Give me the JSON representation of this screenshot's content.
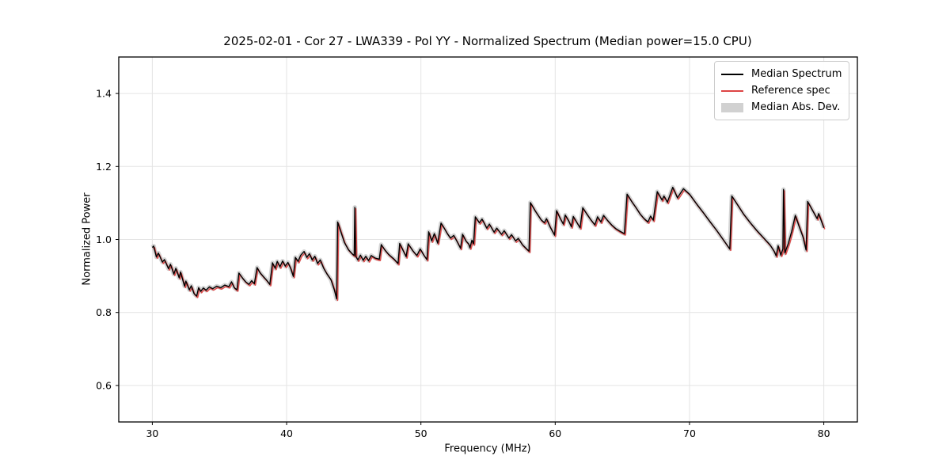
{
  "chart_data": {
    "type": "line",
    "title": "2025-02-01 - Cor 27 - LWA339 - Pol YY - Normalized Spectrum (Median power=15.0 CPU)",
    "xlabel": "Frequency (MHz)",
    "ylabel": "Normalized Power",
    "xlim": [
      27.5,
      82.5
    ],
    "ylim": [
      0.5,
      1.5
    ],
    "xticks": [
      30,
      40,
      50,
      60,
      70,
      80
    ],
    "yticks": [
      0.6,
      0.8,
      1.0,
      1.2,
      1.4
    ],
    "grid": true,
    "grid_color": "#e4e4e4",
    "background": "#ffffff",
    "legend_position": "upper right",
    "series": [
      {
        "name": "Median Spectrum",
        "type": "line",
        "color": "#000000",
        "points": [
          [
            30.0,
            0.978
          ],
          [
            30.1,
            0.982
          ],
          [
            30.3,
            0.952
          ],
          [
            30.45,
            0.963
          ],
          [
            30.75,
            0.938
          ],
          [
            30.9,
            0.945
          ],
          [
            31.2,
            0.92
          ],
          [
            31.35,
            0.932
          ],
          [
            31.6,
            0.905
          ],
          [
            31.75,
            0.921
          ],
          [
            32.0,
            0.895
          ],
          [
            32.1,
            0.911
          ],
          [
            32.4,
            0.872
          ],
          [
            32.5,
            0.886
          ],
          [
            32.75,
            0.862
          ],
          [
            32.9,
            0.873
          ],
          [
            33.1,
            0.852
          ],
          [
            33.3,
            0.845
          ],
          [
            33.45,
            0.868
          ],
          [
            33.6,
            0.858
          ],
          [
            33.8,
            0.867
          ],
          [
            34.0,
            0.861
          ],
          [
            34.25,
            0.87
          ],
          [
            34.5,
            0.865
          ],
          [
            34.8,
            0.872
          ],
          [
            35.1,
            0.868
          ],
          [
            35.4,
            0.875
          ],
          [
            35.7,
            0.871
          ],
          [
            35.9,
            0.884
          ],
          [
            36.1,
            0.868
          ],
          [
            36.3,
            0.862
          ],
          [
            36.45,
            0.908
          ],
          [
            36.7,
            0.895
          ],
          [
            36.95,
            0.884
          ],
          [
            37.2,
            0.877
          ],
          [
            37.4,
            0.887
          ],
          [
            37.6,
            0.879
          ],
          [
            37.8,
            0.923
          ],
          [
            38.0,
            0.91
          ],
          [
            38.25,
            0.899
          ],
          [
            38.5,
            0.889
          ],
          [
            38.75,
            0.877
          ],
          [
            38.95,
            0.936
          ],
          [
            39.15,
            0.921
          ],
          [
            39.3,
            0.94
          ],
          [
            39.5,
            0.925
          ],
          [
            39.7,
            0.941
          ],
          [
            39.9,
            0.927
          ],
          [
            40.1,
            0.937
          ],
          [
            40.3,
            0.921
          ],
          [
            40.5,
            0.899
          ],
          [
            40.65,
            0.951
          ],
          [
            40.85,
            0.94
          ],
          [
            41.05,
            0.957
          ],
          [
            41.3,
            0.967
          ],
          [
            41.5,
            0.951
          ],
          [
            41.7,
            0.961
          ],
          [
            41.9,
            0.944
          ],
          [
            42.1,
            0.954
          ],
          [
            42.3,
            0.934
          ],
          [
            42.5,
            0.944
          ],
          [
            42.75,
            0.922
          ],
          [
            43.0,
            0.906
          ],
          [
            43.3,
            0.89
          ],
          [
            43.55,
            0.862
          ],
          [
            43.72,
            0.837
          ],
          [
            43.8,
            1.048
          ],
          [
            44.05,
            1.02
          ],
          [
            44.3,
            0.992
          ],
          [
            44.6,
            0.972
          ],
          [
            44.9,
            0.96
          ],
          [
            45.03,
            0.956
          ],
          [
            45.08,
            1.088
          ],
          [
            45.15,
            0.954
          ],
          [
            45.3,
            0.944
          ],
          [
            45.5,
            0.957
          ],
          [
            45.7,
            0.943
          ],
          [
            45.9,
            0.954
          ],
          [
            46.1,
            0.942
          ],
          [
            46.3,
            0.956
          ],
          [
            46.6,
            0.949
          ],
          [
            46.9,
            0.946
          ],
          [
            47.05,
            0.986
          ],
          [
            47.3,
            0.972
          ],
          [
            47.6,
            0.959
          ],
          [
            48.0,
            0.946
          ],
          [
            48.3,
            0.934
          ],
          [
            48.42,
            0.989
          ],
          [
            48.7,
            0.968
          ],
          [
            48.9,
            0.953
          ],
          [
            49.05,
            0.988
          ],
          [
            49.4,
            0.969
          ],
          [
            49.7,
            0.956
          ],
          [
            49.95,
            0.974
          ],
          [
            50.2,
            0.958
          ],
          [
            50.45,
            0.945
          ],
          [
            50.58,
            1.021
          ],
          [
            50.8,
            0.996
          ],
          [
            51.0,
            1.016
          ],
          [
            51.25,
            0.99
          ],
          [
            51.5,
            1.045
          ],
          [
            51.75,
            1.03
          ],
          [
            51.95,
            1.017
          ],
          [
            52.2,
            1.004
          ],
          [
            52.45,
            1.011
          ],
          [
            52.7,
            0.994
          ],
          [
            52.95,
            0.976
          ],
          [
            53.1,
            1.014
          ],
          [
            53.35,
            0.996
          ],
          [
            53.55,
            0.988
          ],
          [
            53.65,
            0.977
          ],
          [
            53.8,
            0.998
          ],
          [
            53.92,
            0.988
          ],
          [
            54.05,
            1.062
          ],
          [
            54.35,
            1.046
          ],
          [
            54.55,
            1.056
          ],
          [
            54.9,
            1.031
          ],
          [
            55.1,
            1.042
          ],
          [
            55.45,
            1.02
          ],
          [
            55.65,
            1.031
          ],
          [
            56.0,
            1.014
          ],
          [
            56.2,
            1.024
          ],
          [
            56.55,
            1.004
          ],
          [
            56.75,
            1.013
          ],
          [
            57.05,
            0.996
          ],
          [
            57.25,
            1.003
          ],
          [
            57.55,
            0.986
          ],
          [
            57.85,
            0.975
          ],
          [
            58.05,
            0.968
          ],
          [
            58.15,
            1.101
          ],
          [
            58.5,
            1.079
          ],
          [
            58.95,
            1.054
          ],
          [
            59.2,
            1.046
          ],
          [
            59.35,
            1.057
          ],
          [
            59.6,
            1.036
          ],
          [
            59.95,
            1.012
          ],
          [
            60.1,
            1.079
          ],
          [
            60.35,
            1.059
          ],
          [
            60.6,
            1.042
          ],
          [
            60.75,
            1.067
          ],
          [
            61.0,
            1.051
          ],
          [
            61.2,
            1.035
          ],
          [
            61.35,
            1.063
          ],
          [
            61.6,
            1.047
          ],
          [
            61.85,
            1.032
          ],
          [
            62.05,
            1.087
          ],
          [
            62.35,
            1.07
          ],
          [
            62.65,
            1.054
          ],
          [
            62.95,
            1.04
          ],
          [
            63.15,
            1.062
          ],
          [
            63.4,
            1.048
          ],
          [
            63.6,
            1.066
          ],
          [
            63.9,
            1.052
          ],
          [
            64.2,
            1.04
          ],
          [
            64.5,
            1.03
          ],
          [
            64.85,
            1.022
          ],
          [
            65.15,
            1.016
          ],
          [
            65.35,
            1.124
          ],
          [
            65.7,
            1.104
          ],
          [
            66.0,
            1.088
          ],
          [
            66.3,
            1.071
          ],
          [
            66.6,
            1.058
          ],
          [
            66.9,
            1.048
          ],
          [
            67.1,
            1.064
          ],
          [
            67.3,
            1.053
          ],
          [
            67.6,
            1.131
          ],
          [
            67.95,
            1.108
          ],
          [
            68.1,
            1.119
          ],
          [
            68.35,
            1.102
          ],
          [
            68.75,
            1.143
          ],
          [
            69.1,
            1.114
          ],
          [
            69.55,
            1.139
          ],
          [
            70.0,
            1.124
          ],
          [
            70.5,
            1.099
          ],
          [
            71.0,
            1.075
          ],
          [
            71.5,
            1.05
          ],
          [
            72.0,
            1.026
          ],
          [
            72.5,
            1.0
          ],
          [
            73.0,
            0.974
          ],
          [
            73.15,
            1.119
          ],
          [
            73.6,
            1.094
          ],
          [
            74.0,
            1.071
          ],
          [
            74.5,
            1.047
          ],
          [
            75.0,
            1.025
          ],
          [
            75.5,
            1.005
          ],
          [
            76.0,
            0.985
          ],
          [
            76.3,
            0.968
          ],
          [
            76.45,
            0.955
          ],
          [
            76.6,
            0.983
          ],
          [
            76.8,
            0.957
          ],
          [
            76.95,
            0.974
          ],
          [
            77.0,
            1.137
          ],
          [
            77.1,
            0.963
          ],
          [
            77.35,
            0.988
          ],
          [
            77.6,
            1.021
          ],
          [
            77.88,
            1.066
          ],
          [
            78.15,
            1.037
          ],
          [
            78.45,
            1.007
          ],
          [
            78.68,
            0.971
          ],
          [
            78.8,
            1.104
          ],
          [
            79.05,
            1.087
          ],
          [
            79.35,
            1.067
          ],
          [
            79.5,
            1.057
          ],
          [
            79.62,
            1.071
          ],
          [
            80.0,
            1.032
          ]
        ]
      },
      {
        "name": "Reference spec",
        "type": "line",
        "color": "#dd4444",
        "tracks": "Median Spectrum",
        "note": "nearly identical to the median spectrum, drawn just below/right of it"
      },
      {
        "name": "Median Abs. Dev.",
        "type": "band",
        "color": "#c9c9c9",
        "around": "Median Spectrum",
        "half_width": 0.008
      }
    ]
  }
}
